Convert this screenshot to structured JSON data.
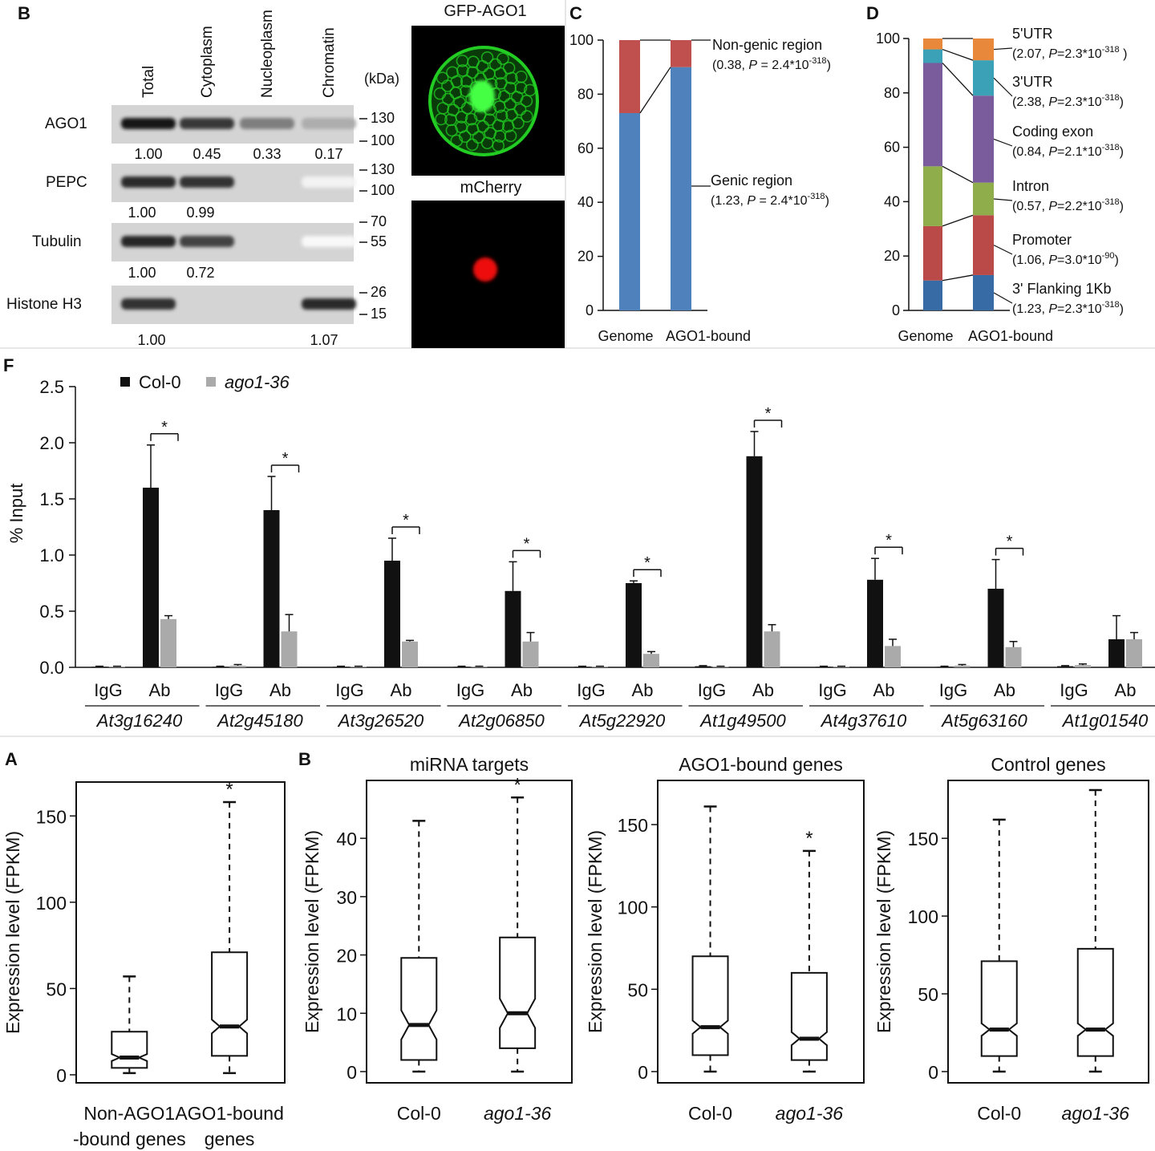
{
  "panels": {
    "top_blot": "B",
    "top_c": "C",
    "top_d": "D",
    "chip": "F",
    "box_a": "A",
    "box_b": "B"
  },
  "blot": {
    "columns": [
      "Total",
      "Cytoplasm",
      "Nucleoplasm",
      "Chromatin"
    ],
    "kda_label": "(kDa)",
    "rows": [
      {
        "label": "AGO1",
        "markers": [
          "130",
          "100"
        ],
        "quant": [
          "1.00",
          "0.45",
          "0.33",
          "0.17"
        ]
      },
      {
        "label": "PEPC",
        "markers": [
          "130",
          "100"
        ],
        "quant": [
          "1.00",
          "0.99"
        ]
      },
      {
        "label": "Tubulin",
        "markers": [
          "70",
          "55"
        ],
        "quant": [
          "1.00",
          "0.72"
        ]
      },
      {
        "label": "Histone H3",
        "markers": [
          "26",
          "15"
        ],
        "quant": [
          "1.00",
          "1.07"
        ]
      }
    ],
    "band_intensity": [
      [
        1.0,
        0.85,
        0.55,
        0.35
      ],
      [
        0.9,
        0.88,
        0.0,
        0.05
      ],
      [
        0.92,
        0.8,
        0.0,
        0.03
      ],
      [
        0.88,
        0.0,
        0.0,
        0.9
      ]
    ]
  },
  "micrographs": {
    "gfp_title": "GFP-AGO1",
    "mcherry_title": "mCherry",
    "gfp_color": "#22cc22",
    "mcherry_color": "#ee1111"
  },
  "chart_data": [
    {
      "type": "bar",
      "panel": "C",
      "stacked": true,
      "categories": [
        "Genome",
        "AGO1-bound"
      ],
      "ylim": [
        0,
        100
      ],
      "yticks": [
        "0",
        "20",
        "40",
        "60",
        "80",
        "100"
      ],
      "series": [
        {
          "name": "Genic region",
          "color": "#4f81bd",
          "values": [
            73,
            90
          ]
        },
        {
          "name": "Non-genic region",
          "color": "#c0504d",
          "values": [
            27,
            10
          ]
        }
      ],
      "annotations": [
        {
          "line1": "Non-genic region",
          "line2_pre": "(0.38, ",
          "p": "P",
          "line2_mid": " = 2.4*10",
          "exp": "-318",
          "line2_post": ")"
        },
        {
          "line1": "Genic region",
          "line2_pre": "(1.23, ",
          "p": "P",
          "line2_mid": " = 2.4*10",
          "exp": "-318",
          "line2_post": ")"
        }
      ]
    },
    {
      "type": "bar",
      "panel": "D",
      "stacked": true,
      "categories": [
        "Genome",
        "AGO1-bound"
      ],
      "ylim": [
        0,
        100
      ],
      "yticks": [
        "0",
        "20",
        "40",
        "60",
        "80",
        "100"
      ],
      "series": [
        {
          "name": "3' Flanking 1Kb",
          "color": "#376ba6",
          "values": [
            11,
            13
          ]
        },
        {
          "name": "Promoter",
          "color": "#b94a48",
          "values": [
            20,
            22
          ]
        },
        {
          "name": "Intron",
          "color": "#8fad4a",
          "values": [
            22,
            12
          ]
        },
        {
          "name": "Coding exon",
          "color": "#7a5b9b",
          "values": [
            38,
            32
          ]
        },
        {
          "name": "3'UTR",
          "color": "#3aa1b7",
          "values": [
            5,
            13
          ]
        },
        {
          "name": "5'UTR",
          "color": "#e8883a",
          "values": [
            4,
            8
          ]
        }
      ],
      "annotations": [
        {
          "line1": "5'UTR",
          "line2_pre": "(2.07, ",
          "p": "P",
          "line2_mid": "=2.3*10",
          "exp": "-318",
          "line2_post": " )"
        },
        {
          "line1": "3'UTR",
          "line2_pre": "(2.38, ",
          "p": "P",
          "line2_mid": "=2.3*10",
          "exp": "-318",
          "line2_post": ")"
        },
        {
          "line1": "Coding exon",
          "line2_pre": "(0.84, ",
          "p": "P",
          "line2_mid": "=2.1*10",
          "exp": "-318",
          "line2_post": ")"
        },
        {
          "line1": "Intron",
          "line2_pre": "(0.57, ",
          "p": "P",
          "line2_mid": "=2.2*10",
          "exp": "-318",
          "line2_post": ")"
        },
        {
          "line1": "Promoter",
          "line2_pre": "(1.06, ",
          "p": "P",
          "line2_mid": "=3.0*10",
          "exp": "-90",
          "line2_post": ")"
        },
        {
          "line1": "3' Flanking 1Kb",
          "line2_pre": "(1.23, ",
          "p": "P",
          "line2_mid": "=2.3*10",
          "exp": "-318",
          "line2_post": ")"
        }
      ]
    },
    {
      "type": "bar",
      "panel": "F",
      "ylabel": "% Input",
      "ylim": [
        0,
        2.5
      ],
      "yticks": [
        "0.0",
        "0.5",
        "1.0",
        "1.5",
        "2.0",
        "2.5"
      ],
      "legend": [
        {
          "name": "Col-0",
          "color": "#111111",
          "italic": false
        },
        {
          "name": "ago1-36",
          "color": "#aaaaaa",
          "italic": true
        }
      ],
      "subcategories": [
        "IgG",
        "Ab"
      ],
      "significance_mark": "*",
      "groups": [
        {
          "gene": "At3g16240",
          "values": [
            [
              0.005,
              0.005
            ],
            [
              1.6,
              0.43
            ]
          ],
          "errors": [
            [
              0.005,
              0.005
            ],
            [
              0.38,
              0.03
            ]
          ],
          "sig": true
        },
        {
          "gene": "At2g45180",
          "values": [
            [
              0.005,
              0.015
            ],
            [
              1.4,
              0.32
            ]
          ],
          "errors": [
            [
              0.005,
              0.01
            ],
            [
              0.3,
              0.15
            ]
          ],
          "sig": true
        },
        {
          "gene": "At3g26520",
          "values": [
            [
              0.005,
              0.005
            ],
            [
              0.95,
              0.23
            ]
          ],
          "errors": [
            [
              0.005,
              0.005
            ],
            [
              0.2,
              0.01
            ]
          ],
          "sig": true
        },
        {
          "gene": "At2g06850",
          "values": [
            [
              0.005,
              0.005
            ],
            [
              0.68,
              0.23
            ]
          ],
          "errors": [
            [
              0.005,
              0.005
            ],
            [
              0.26,
              0.08
            ]
          ],
          "sig": true
        },
        {
          "gene": "At5g22920",
          "values": [
            [
              0.005,
              0.005
            ],
            [
              0.75,
              0.12
            ]
          ],
          "errors": [
            [
              0.005,
              0.005
            ],
            [
              0.02,
              0.02
            ]
          ],
          "sig": true
        },
        {
          "gene": "At1g49500",
          "values": [
            [
              0.01,
              0.005
            ],
            [
              1.88,
              0.32
            ]
          ],
          "errors": [
            [
              0.005,
              0.005
            ],
            [
              0.22,
              0.06
            ]
          ],
          "sig": true
        },
        {
          "gene": "At4g37610",
          "values": [
            [
              0.005,
              0.005
            ],
            [
              0.78,
              0.19
            ]
          ],
          "errors": [
            [
              0.005,
              0.005
            ],
            [
              0.19,
              0.06
            ]
          ],
          "sig": true
        },
        {
          "gene": "At5g63160",
          "values": [
            [
              0.005,
              0.015
            ],
            [
              0.7,
              0.18
            ]
          ],
          "errors": [
            [
              0.005,
              0.01
            ],
            [
              0.26,
              0.05
            ]
          ],
          "sig": true
        },
        {
          "gene": "At1g01540",
          "values": [
            [
              0.01,
              0.02
            ],
            [
              0.25,
              0.25
            ]
          ],
          "errors": [
            [
              0.005,
              0.01
            ],
            [
              0.21,
              0.06
            ]
          ],
          "sig": false
        }
      ]
    },
    {
      "type": "box",
      "panel": "A",
      "ylabel": "Expression level (FPKM)",
      "ylim": [
        0,
        165
      ],
      "yticks": [
        0,
        50,
        100,
        150
      ],
      "categories": [
        {
          "line1": "Non-AGO1",
          "line2": "-bound genes",
          "italic": false
        },
        {
          "line1": "AGO1-bound",
          "line2": "genes",
          "italic": false
        }
      ],
      "boxes": [
        {
          "min": 1,
          "q1": 4,
          "median": 10,
          "q3": 25,
          "max": 57,
          "notch": 2,
          "sig": false
        },
        {
          "min": 1,
          "q1": 11,
          "median": 28,
          "q3": 71,
          "max": 158,
          "notch": 4,
          "sig": true
        }
      ],
      "significance_mark": "*"
    },
    {
      "type": "box",
      "panel": "B",
      "title": "miRNA targets",
      "ylabel": "Expression level (FPKM)",
      "ylim": [
        0,
        48
      ],
      "yticks": [
        0,
        10,
        20,
        30,
        40
      ],
      "categories": [
        {
          "line1": "Col-0",
          "line2": "",
          "italic": false
        },
        {
          "line1": "ago1-36",
          "line2": "",
          "italic": true
        }
      ],
      "boxes": [
        {
          "min": 0,
          "q1": 2,
          "median": 8,
          "q3": 19.5,
          "max": 43,
          "notch": 2.5,
          "sig": false
        },
        {
          "min": 0,
          "q1": 4,
          "median": 10,
          "q3": 23,
          "max": 47,
          "notch": 2.5,
          "sig": true
        }
      ],
      "significance_mark": "*"
    },
    {
      "type": "box",
      "panel": "",
      "title": "AGO1-bound genes",
      "ylabel": "Expression level (FPKM)",
      "ylim": [
        0,
        170
      ],
      "yticks": [
        0,
        50,
        100,
        150
      ],
      "categories": [
        {
          "line1": "Col-0",
          "line2": "",
          "italic": false
        },
        {
          "line1": "ago1-36",
          "line2": "",
          "italic": true
        }
      ],
      "boxes": [
        {
          "min": 0,
          "q1": 10,
          "median": 27,
          "q3": 70,
          "max": 161,
          "notch": 4,
          "sig": false
        },
        {
          "min": 0,
          "q1": 7,
          "median": 20,
          "q3": 60,
          "max": 134,
          "notch": 4,
          "sig": true
        }
      ],
      "significance_mark": "*"
    },
    {
      "type": "box",
      "panel": "",
      "title": "Control genes",
      "ylabel": "Expression level (FPKM)",
      "ylim": [
        0,
        180
      ],
      "yticks": [
        0,
        50,
        100,
        150
      ],
      "categories": [
        {
          "line1": "Col-0",
          "line2": "",
          "italic": false
        },
        {
          "line1": "ago1-36",
          "line2": "",
          "italic": true
        }
      ],
      "boxes": [
        {
          "min": 0,
          "q1": 10,
          "median": 27,
          "q3": 71,
          "max": 162,
          "notch": 4,
          "sig": false
        },
        {
          "min": 0,
          "q1": 10,
          "median": 27,
          "q3": 79,
          "max": 181,
          "notch": 4,
          "sig": false
        }
      ]
    }
  ]
}
